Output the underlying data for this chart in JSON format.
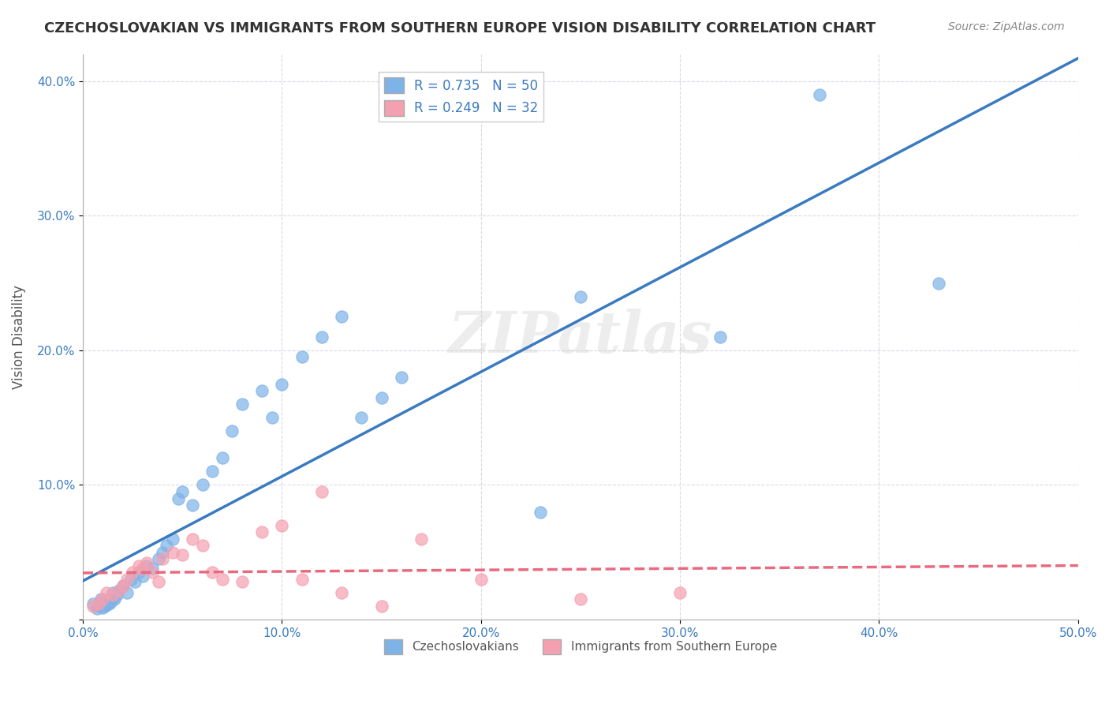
{
  "title": "CZECHOSLOVAKIAN VS IMMIGRANTS FROM SOUTHERN EUROPE VISION DISABILITY CORRELATION CHART",
  "source": "Source: ZipAtlas.com",
  "xlabel_bottom": "",
  "ylabel": "Vision Disability",
  "xlim": [
    0.0,
    0.5
  ],
  "ylim": [
    0.0,
    0.42
  ],
  "xticks": [
    0.0,
    0.1,
    0.2,
    0.3,
    0.4,
    0.5
  ],
  "yticks": [
    0.0,
    0.1,
    0.2,
    0.3,
    0.4
  ],
  "xticklabels": [
    "0.0%",
    "10.0%",
    "20.0%",
    "30.0%",
    "40.0%",
    "50.0%"
  ],
  "yticklabels": [
    "",
    "10.0%",
    "20.0%",
    "30.0%",
    "40.0%"
  ],
  "blue_R": 0.735,
  "blue_N": 50,
  "pink_R": 0.249,
  "pink_N": 32,
  "blue_color": "#7EB3E8",
  "pink_color": "#F4A0B0",
  "blue_line_color": "#3A7AC0",
  "pink_line_color": "#E86A80",
  "watermark": "ZIPatlas",
  "legend_label_blue": "Czechoslovakians",
  "legend_label_pink": "Immigrants from Southern Europe",
  "blue_scatter_x": [
    0.005,
    0.007,
    0.008,
    0.009,
    0.01,
    0.01,
    0.011,
    0.012,
    0.012,
    0.013,
    0.014,
    0.015,
    0.015,
    0.016,
    0.017,
    0.018,
    0.02,
    0.022,
    0.024,
    0.026,
    0.028,
    0.03,
    0.032,
    0.035,
    0.038,
    0.04,
    0.042,
    0.045,
    0.048,
    0.05,
    0.055,
    0.06,
    0.065,
    0.07,
    0.075,
    0.08,
    0.09,
    0.095,
    0.1,
    0.11,
    0.12,
    0.13,
    0.14,
    0.15,
    0.16,
    0.23,
    0.25,
    0.32,
    0.37,
    0.43
  ],
  "blue_scatter_y": [
    0.012,
    0.008,
    0.01,
    0.015,
    0.009,
    0.013,
    0.01,
    0.011,
    0.014,
    0.012,
    0.013,
    0.016,
    0.02,
    0.015,
    0.018,
    0.022,
    0.025,
    0.02,
    0.03,
    0.028,
    0.035,
    0.032,
    0.04,
    0.038,
    0.045,
    0.05,
    0.055,
    0.06,
    0.09,
    0.095,
    0.085,
    0.1,
    0.11,
    0.12,
    0.14,
    0.16,
    0.17,
    0.15,
    0.175,
    0.195,
    0.21,
    0.225,
    0.15,
    0.165,
    0.18,
    0.08,
    0.24,
    0.21,
    0.39,
    0.25
  ],
  "pink_scatter_x": [
    0.005,
    0.008,
    0.01,
    0.012,
    0.015,
    0.018,
    0.02,
    0.022,
    0.025,
    0.028,
    0.03,
    0.032,
    0.035,
    0.038,
    0.04,
    0.045,
    0.05,
    0.055,
    0.06,
    0.065,
    0.07,
    0.08,
    0.09,
    0.1,
    0.11,
    0.12,
    0.13,
    0.15,
    0.17,
    0.2,
    0.25,
    0.3
  ],
  "pink_scatter_y": [
    0.01,
    0.012,
    0.015,
    0.02,
    0.018,
    0.022,
    0.025,
    0.03,
    0.035,
    0.04,
    0.038,
    0.042,
    0.035,
    0.028,
    0.045,
    0.05,
    0.048,
    0.06,
    0.055,
    0.035,
    0.03,
    0.028,
    0.065,
    0.07,
    0.03,
    0.095,
    0.02,
    0.01,
    0.06,
    0.03,
    0.015,
    0.02
  ]
}
